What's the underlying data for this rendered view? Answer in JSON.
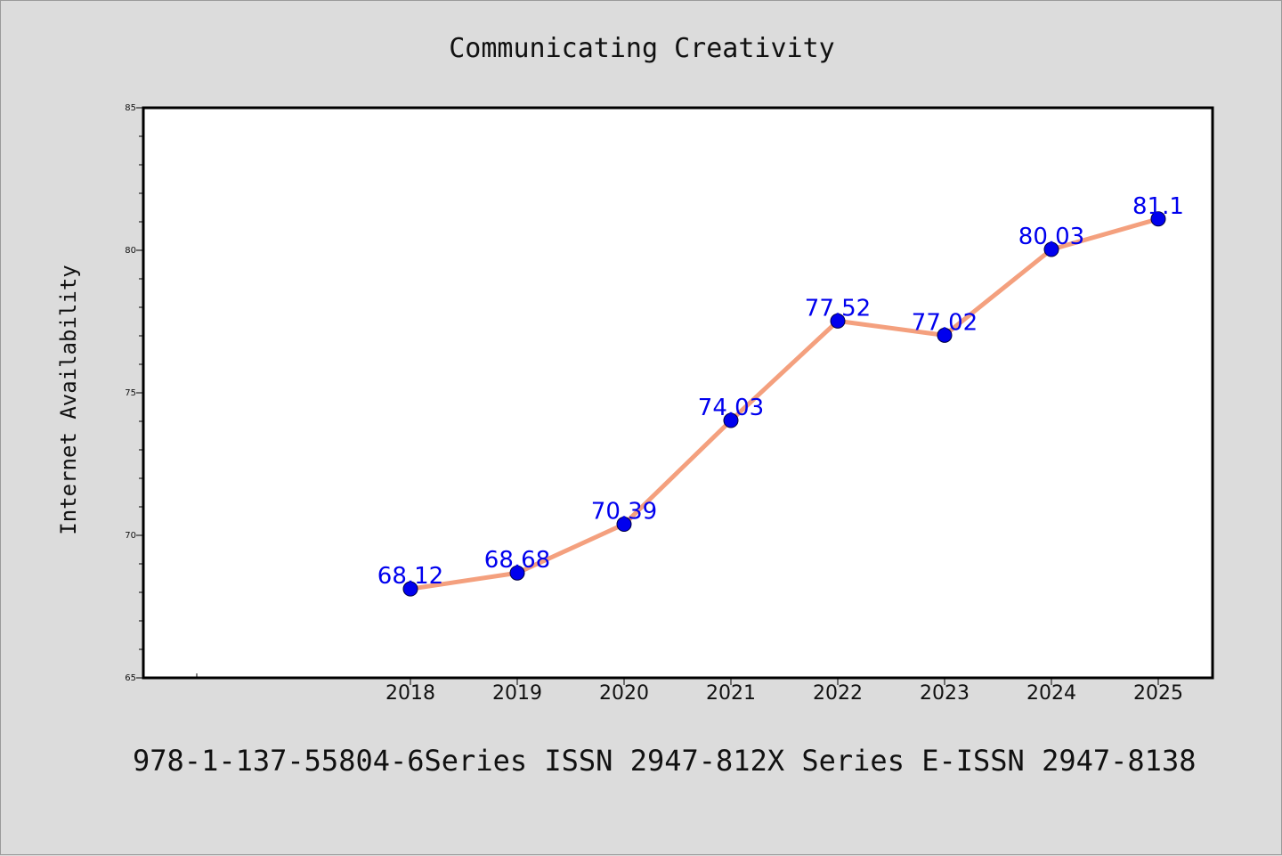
{
  "chart_data": {
    "type": "line",
    "title": "Communicating Creativity",
    "xlabel": "",
    "ylabel": "Internet Availability",
    "categories": [
      "2018",
      "2019",
      "2020",
      "2021",
      "2022",
      "2023",
      "2024",
      "2025"
    ],
    "series": [
      {
        "values": [
          68.12,
          68.68,
          70.39,
          74.03,
          77.52,
          77.02,
          80.03,
          81.1
        ],
        "data_labels": [
          "68.12",
          "68.68",
          "70.39",
          "74.03",
          "77.52",
          "77.02",
          "80.03",
          "81.1"
        ],
        "line_color": "#f4a07e",
        "marker_color": "#0000ee"
      }
    ],
    "ylim": [
      65,
      85
    ],
    "yticks": [
      65,
      70,
      75,
      80,
      85
    ],
    "ytick_labels": [
      "65",
      "70",
      "75",
      "80",
      "85"
    ],
    "label_color": "#0000ee",
    "grid": false,
    "legend": "none"
  },
  "footer": "978-1-137-55804-6Series ISSN 2947-812X Series E-ISSN 2947-8138"
}
